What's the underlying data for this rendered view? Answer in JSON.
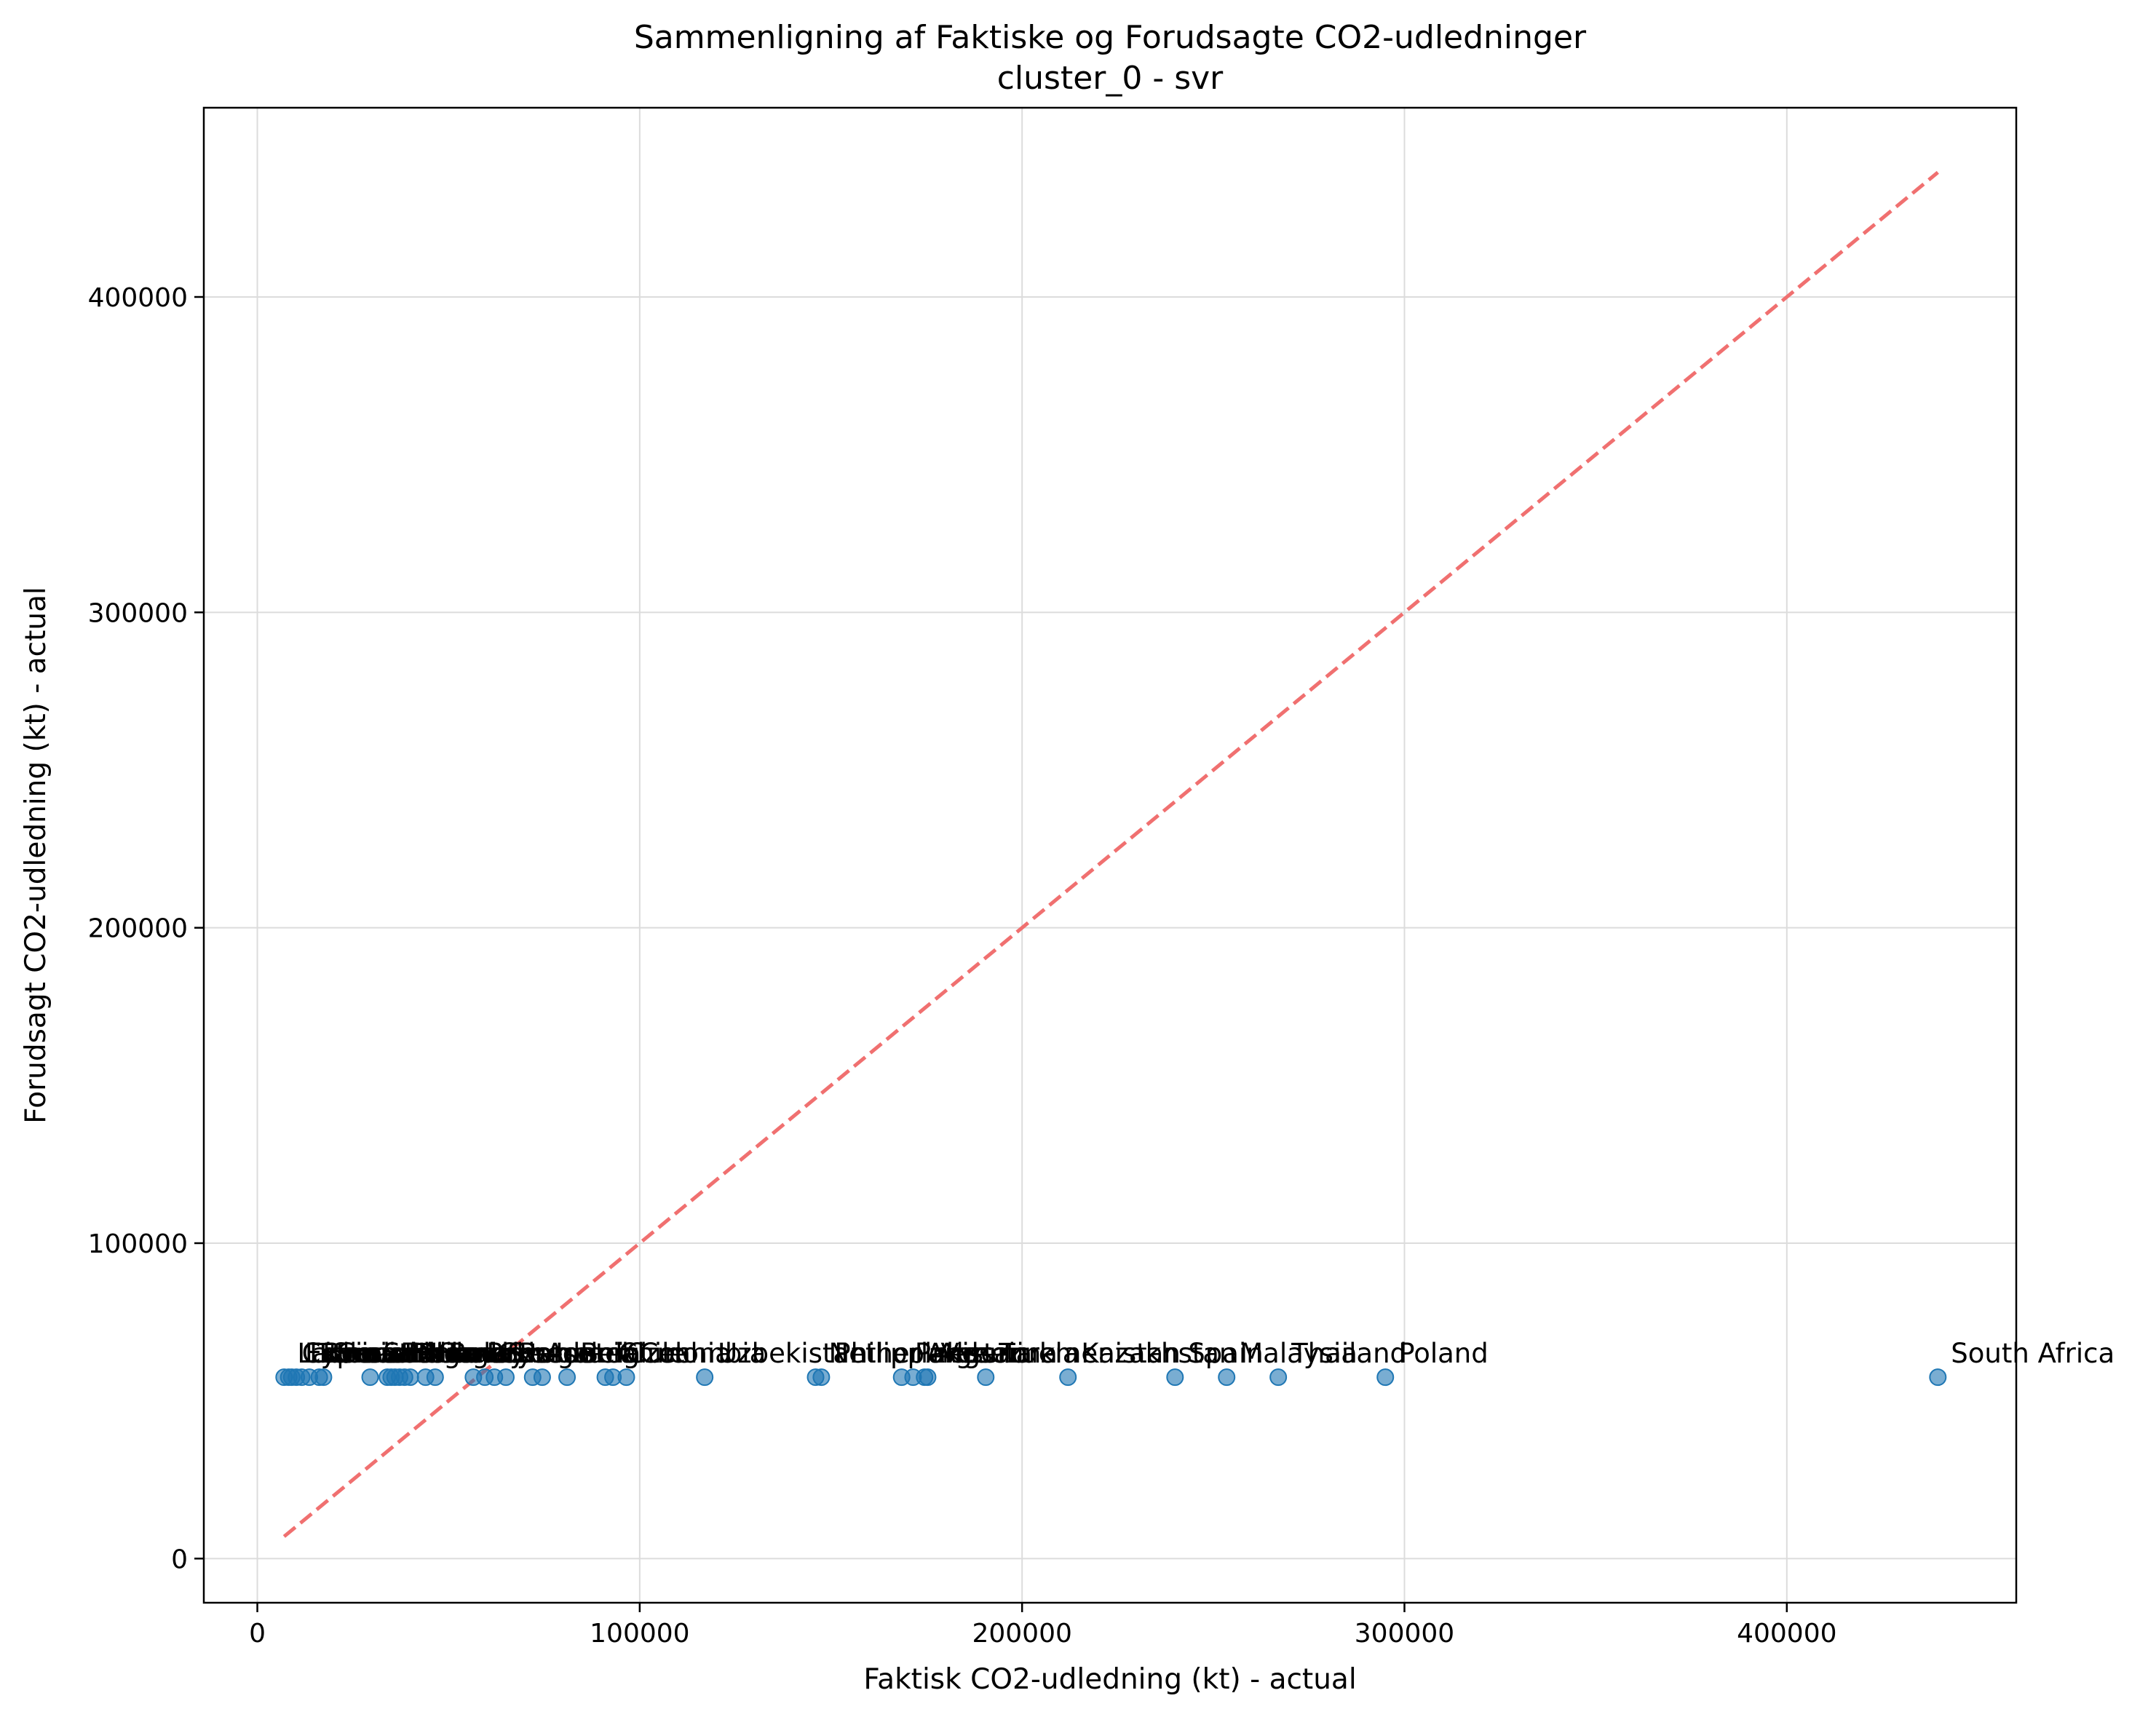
{
  "chart_data": {
    "type": "scatter",
    "title": "Sammenligning af Faktiske og Forudsagte CO2-udledninger",
    "subtitle": "cluster_0 - svr",
    "xlabel": "Faktisk CO2-udledning (kt) - actual",
    "ylabel": "Forudsagt CO2-udledning (kt) - actual",
    "xlim": [
      -14000,
      460000
    ],
    "ylim": [
      -14000,
      460000
    ],
    "xticks": [
      0,
      100000,
      200000,
      300000,
      400000
    ],
    "xtick_labels": [
      "0",
      "100000",
      "200000",
      "300000",
      "400000"
    ],
    "yticks": [
      0,
      100000,
      200000,
      300000,
      400000
    ],
    "ytick_labels": [
      "0",
      "100000",
      "200000",
      "300000",
      "400000"
    ],
    "grid": true,
    "reference_line": {
      "x": [
        7000,
        439500
      ],
      "y": [
        7000,
        439500
      ],
      "color": "#f07070",
      "style": "dashed"
    },
    "marker_color": "#1f77b4",
    "points": [
      {
        "x": 7000,
        "y": 57500,
        "label": "Latvia"
      },
      {
        "x": 8200,
        "y": 57500,
        "label": "Cyprus"
      },
      {
        "x": 9000,
        "y": 57500,
        "label": "Estonia"
      },
      {
        "x": 10200,
        "y": 57500,
        "label": "Lithuania"
      },
      {
        "x": 11600,
        "y": 57500,
        "label": "Tunisia"
      },
      {
        "x": 13600,
        "y": 57500,
        "label": "Bosnia"
      },
      {
        "x": 16200,
        "y": 57500,
        "label": "Slovenia"
      },
      {
        "x": 17300,
        "y": 57500,
        "label": "Croatia"
      },
      {
        "x": 29500,
        "y": 57500,
        "label": "Serbia"
      },
      {
        "x": 34000,
        "y": 57500,
        "label": "Bulgaria"
      },
      {
        "x": 35000,
        "y": 57500,
        "label": "Ireland"
      },
      {
        "x": 36000,
        "y": 57500,
        "label": "Denmark"
      },
      {
        "x": 37200,
        "y": 57500,
        "label": "Finland"
      },
      {
        "x": 38500,
        "y": 57500,
        "label": "Hungary"
      },
      {
        "x": 40000,
        "y": 57500,
        "label": "Norway"
      },
      {
        "x": 44000,
        "y": 57500,
        "label": "Slovakia"
      },
      {
        "x": 46500,
        "y": 57500,
        "label": "Belarus"
      },
      {
        "x": 56500,
        "y": 57500,
        "label": "Portugal"
      },
      {
        "x": 59500,
        "y": 57500,
        "label": "Greece"
      },
      {
        "x": 62000,
        "y": 57500,
        "label": "Sweden"
      },
      {
        "x": 65000,
        "y": 57500,
        "label": "Romania"
      },
      {
        "x": 72000,
        "y": 57500,
        "label": "Austria"
      },
      {
        "x": 74500,
        "y": 57500,
        "label": "Israel"
      },
      {
        "x": 81000,
        "y": 57500,
        "label": "Belgium"
      },
      {
        "x": 91000,
        "y": 57500,
        "label": "Chile"
      },
      {
        "x": 93000,
        "y": 57500,
        "label": "Czechia"
      },
      {
        "x": 96500,
        "y": 57500,
        "label": "Colombia"
      },
      {
        "x": 117000,
        "y": 57500,
        "label": "Uzbekistan"
      },
      {
        "x": 146000,
        "y": 57500,
        "label": "Netherlands"
      },
      {
        "x": 147500,
        "y": 57500,
        "label": "Philippines"
      },
      {
        "x": 168500,
        "y": 57500,
        "label": "Pakistan"
      },
      {
        "x": 171500,
        "y": 57500,
        "label": "Argentina"
      },
      {
        "x": 174500,
        "y": 57500,
        "label": "Algeria"
      },
      {
        "x": 175300,
        "y": 57500,
        "label": "Venezuela"
      },
      {
        "x": 190500,
        "y": 57500,
        "label": "Turkmenistan"
      },
      {
        "x": 212000,
        "y": 57500,
        "label": "Kazakhstan"
      },
      {
        "x": 240000,
        "y": 57500,
        "label": "Spain"
      },
      {
        "x": 253500,
        "y": 57500,
        "label": "Malaysia"
      },
      {
        "x": 267000,
        "y": 57500,
        "label": "Thailand"
      },
      {
        "x": 295000,
        "y": 57500,
        "label": "Poland"
      },
      {
        "x": 439500,
        "y": 57500,
        "label": "South Africa"
      }
    ]
  }
}
